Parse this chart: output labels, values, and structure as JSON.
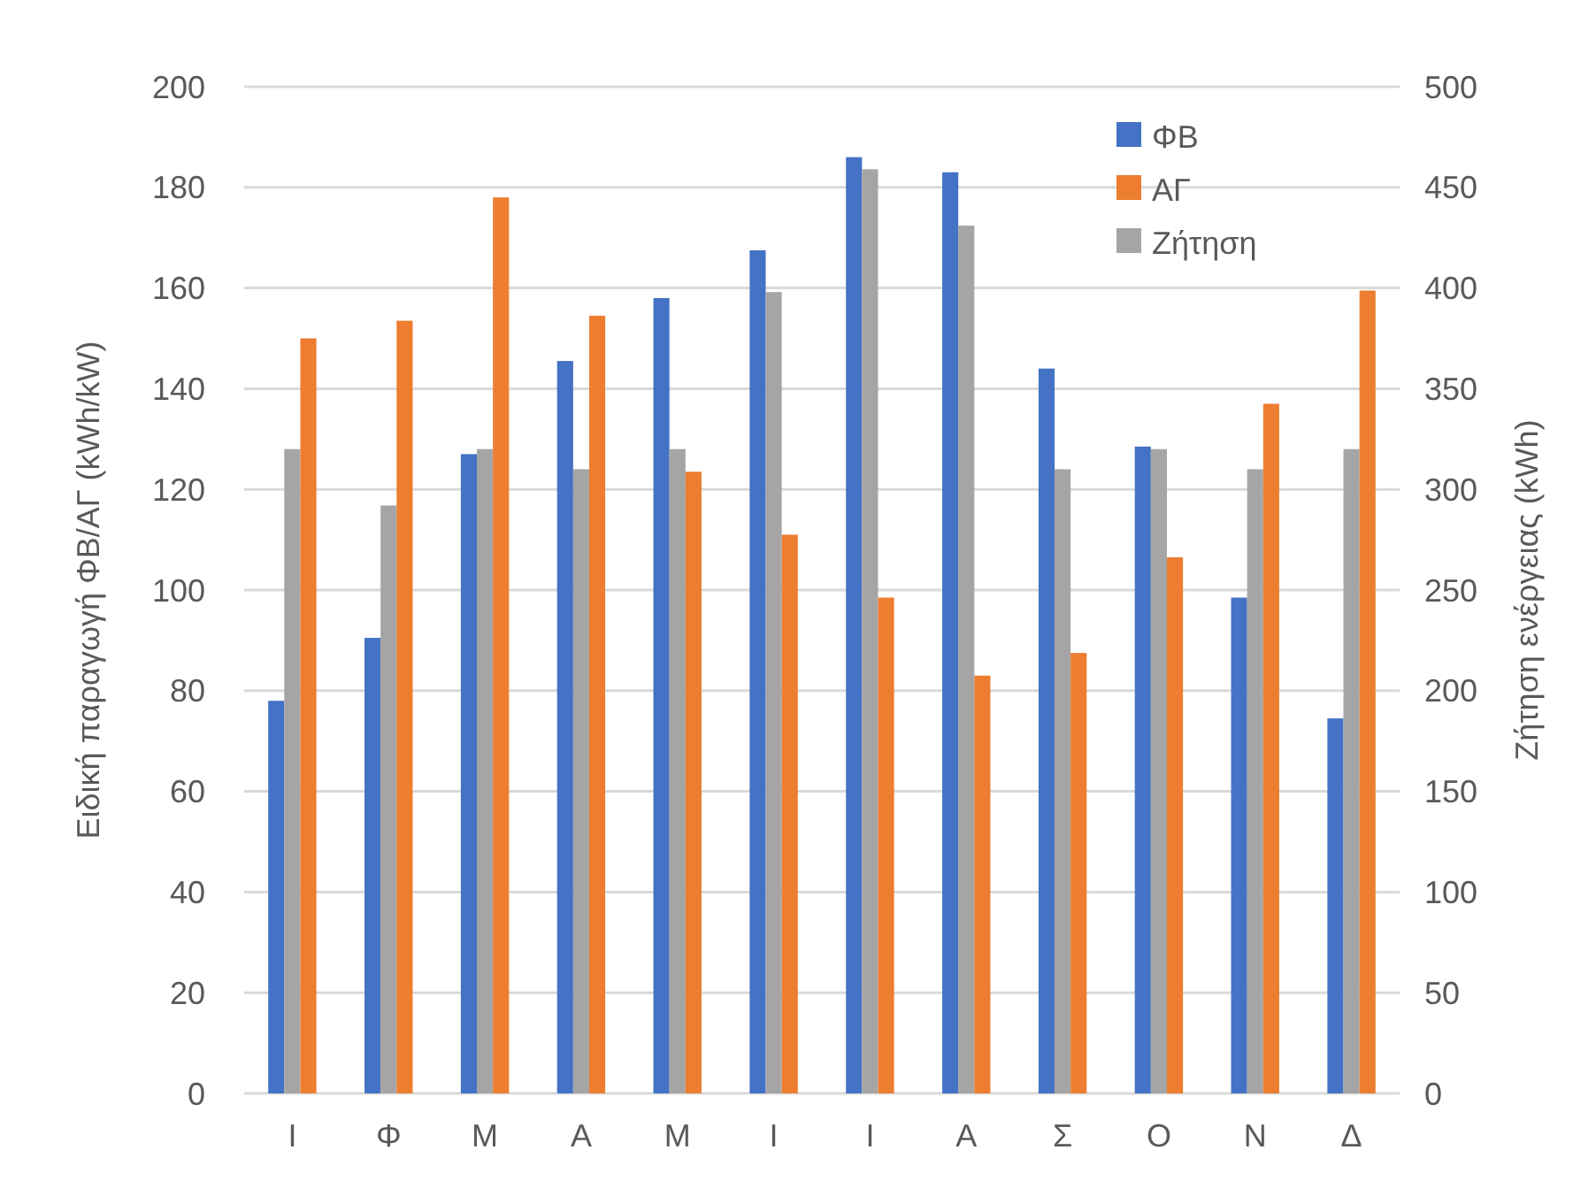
{
  "chart_data": {
    "type": "bar",
    "categories": [
      "Ι",
      "Φ",
      "Μ",
      "Α",
      "Μ",
      "Ι",
      "Ι",
      "Α",
      "Σ",
      "Ο",
      "Ν",
      "Δ"
    ],
    "series": [
      {
        "name": "ΦΒ",
        "color": "#4472c4",
        "values": [
          78,
          90.5,
          127,
          145.5,
          158,
          167.5,
          186,
          183,
          144,
          128.5,
          98.5,
          74.5
        ]
      },
      {
        "name": "Ζήτηση",
        "color": "#a5a5a5",
        "axis": "y2",
        "values": [
          320,
          292,
          320,
          310,
          320,
          398,
          459,
          431,
          310,
          320,
          310,
          320
        ]
      },
      {
        "name": "ΑΓ",
        "color": "#ed7d31",
        "values": [
          150,
          153.5,
          178,
          154.5,
          123.5,
          111,
          98.5,
          83,
          87.5,
          106.5,
          137,
          159.5
        ]
      }
    ],
    "ylabel": "Ειδική παραγωγή ΦΒ/ΑΓ (kWh/kW)",
    "y2label": "Ζήτηση ενέργειας (kWh)",
    "ylim": [
      0,
      200
    ],
    "yticks": [
      0,
      20,
      40,
      60,
      80,
      100,
      120,
      140,
      160,
      180,
      200
    ],
    "y2lim": [
      0,
      500
    ],
    "y2ticks": [
      0,
      50,
      100,
      150,
      200,
      250,
      300,
      350,
      400,
      450,
      500
    ],
    "grid": "y",
    "legend": "top right"
  }
}
